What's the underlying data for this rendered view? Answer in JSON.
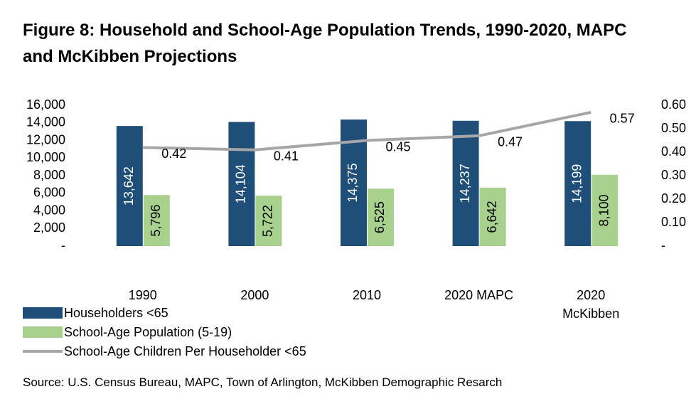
{
  "chart_data": {
    "type": "bar-line",
    "title": "Figure 8: Household and School-Age Population Trends, 1990-2020, MAPC and McKibben Projections",
    "categories": [
      "1990",
      "2000",
      "2010",
      "2020 MAPC",
      "2020 McKibben"
    ],
    "series": [
      {
        "name": "Householders <65",
        "type": "bar",
        "color": "#1f4e79",
        "values": [
          13642,
          14104,
          14375,
          14237,
          14199
        ],
        "value_labels": [
          "13,642",
          "14,104",
          "14,375",
          "14,237",
          "14,199"
        ]
      },
      {
        "name": "School-Age Population (5-19)",
        "type": "bar",
        "color": "#a9d18e",
        "values": [
          5796,
          5722,
          6525,
          6642,
          8100
        ],
        "value_labels": [
          "5,796",
          "5,722",
          "6,525",
          "6,642",
          "8,100"
        ]
      },
      {
        "name": "School-Age Children Per Householder <65",
        "type": "line",
        "axis": "y2",
        "color": "#a6a6a6",
        "values": [
          0.42,
          0.41,
          0.45,
          0.47,
          0.57
        ]
      }
    ],
    "ylim": [
      0,
      16000
    ],
    "yticks": [
      {
        "value": 0,
        "label": "-"
      },
      {
        "value": 2000,
        "label": "2,000"
      },
      {
        "value": 4000,
        "label": "4,000"
      },
      {
        "value": 6000,
        "label": "6,000"
      },
      {
        "value": 8000,
        "label": "8,000"
      },
      {
        "value": 10000,
        "label": "10,000"
      },
      {
        "value": 12000,
        "label": "12,000"
      },
      {
        "value": 14000,
        "label": "14,000"
      },
      {
        "value": 16000,
        "label": "16,000"
      }
    ],
    "y2lim": [
      0,
      0.6
    ],
    "y2ticks": [
      {
        "value": 0,
        "label": "-"
      },
      {
        "value": 0.1,
        "label": "0.10"
      },
      {
        "value": 0.2,
        "label": "0.20"
      },
      {
        "value": 0.3,
        "label": "0.30"
      },
      {
        "value": 0.4,
        "label": "0.40"
      },
      {
        "value": 0.5,
        "label": "0.50"
      },
      {
        "value": 0.6,
        "label": "0.60"
      }
    ],
    "legend": "bottom-left",
    "source": "Source: U.S. Census Bureau, MAPC, Town of Arlington, McKibben Demographic Resarch"
  }
}
